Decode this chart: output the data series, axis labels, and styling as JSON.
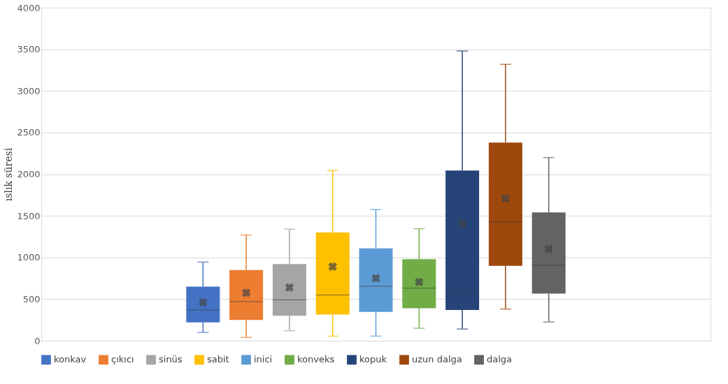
{
  "chart_data": {
    "type": "box",
    "ylabel": "ıslık süresi",
    "categories": [
      null
    ],
    "ylim": [
      0,
      4000
    ],
    "yticks": [
      0,
      500,
      1000,
      1500,
      2000,
      2500,
      3000,
      3500,
      4000
    ],
    "grid": "y",
    "legend": "bottom",
    "series": [
      {
        "name": "konkav",
        "color": "#4472c4",
        "boxes": [
          {
            "low": 100,
            "q1": 220,
            "median": 370,
            "q3": 650,
            "high": 945,
            "mean": 460
          }
        ]
      },
      {
        "name": "çıkıcı",
        "color": "#ed7d31",
        "boxes": [
          {
            "low": 40,
            "q1": 250,
            "median": 470,
            "q3": 850,
            "high": 1270,
            "mean": 575
          }
        ]
      },
      {
        "name": "sinüs",
        "color": "#a5a5a5",
        "boxes": [
          {
            "low": 120,
            "q1": 300,
            "median": 490,
            "q3": 920,
            "high": 1340,
            "mean": 640
          }
        ]
      },
      {
        "name": "sabit",
        "color": "#ffc000",
        "boxes": [
          {
            "low": 55,
            "q1": 315,
            "median": 550,
            "q3": 1300,
            "high": 2045,
            "mean": 890
          }
        ]
      },
      {
        "name": "inici",
        "color": "#5b9bd5",
        "boxes": [
          {
            "low": 55,
            "q1": 345,
            "median": 655,
            "q3": 1110,
            "high": 1575,
            "mean": 750
          }
        ]
      },
      {
        "name": "konveks",
        "color": "#70ad47",
        "boxes": [
          {
            "low": 150,
            "q1": 390,
            "median": 630,
            "q3": 980,
            "high": 1345,
            "mean": 705
          }
        ]
      },
      {
        "name": "kopuk",
        "color": "#264478",
        "boxes": [
          {
            "low": 140,
            "q1": 370,
            "median": 600,
            "q3": 2045,
            "high": 3480,
            "mean": 1405
          }
        ]
      },
      {
        "name": "uzun dalga",
        "color": "#9e480e",
        "boxes": [
          {
            "low": 380,
            "q1": 900,
            "median": 1425,
            "q3": 2380,
            "high": 3320,
            "mean": 1710
          }
        ]
      },
      {
        "name": "dalga",
        "color": "#636363",
        "boxes": [
          {
            "low": 225,
            "q1": 565,
            "median": 905,
            "q3": 1540,
            "high": 2200,
            "mean": 1100
          }
        ]
      }
    ]
  }
}
